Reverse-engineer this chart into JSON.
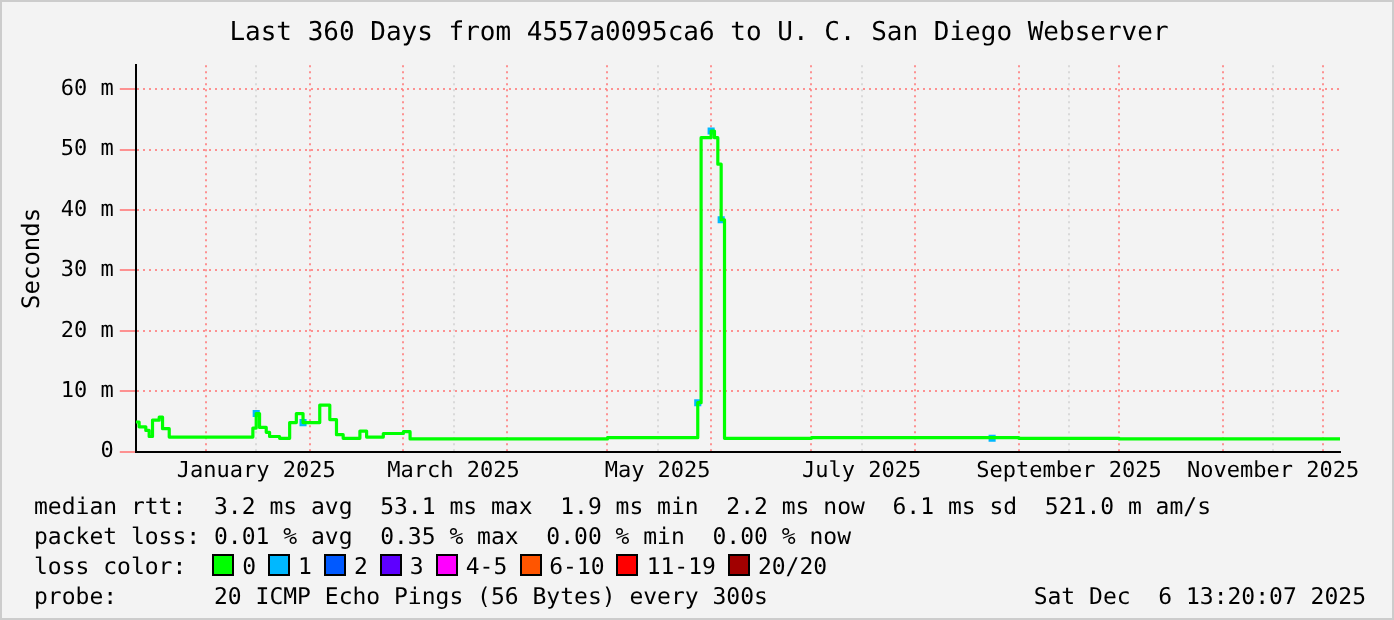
{
  "chart_data": {
    "type": "step",
    "title": "Last 360 Days from 4557a0095ca6 to U. C. San Diego Webserver",
    "ylabel": "Seconds",
    "legend_title": "loss color:",
    "xlim": [
      "2024-12-11",
      "2025-12-06"
    ],
    "xticks": [
      {
        "value": "2025-01-01",
        "label": null
      },
      {
        "value": "2025-01-16",
        "label": "January 2025"
      },
      {
        "value": "2025-02-01",
        "label": null
      },
      {
        "value": "2025-03-01",
        "label": null
      },
      {
        "value": "2025-03-16",
        "label": "March 2025"
      },
      {
        "value": "2025-04-01",
        "label": null
      },
      {
        "value": "2025-05-01",
        "label": null
      },
      {
        "value": "2025-05-16",
        "label": "May 2025"
      },
      {
        "value": "2025-06-01",
        "label": null
      },
      {
        "value": "2025-07-01",
        "label": null
      },
      {
        "value": "2025-07-16",
        "label": "July 2025"
      },
      {
        "value": "2025-08-01",
        "label": null
      },
      {
        "value": "2025-09-01",
        "label": null
      },
      {
        "value": "2025-09-16",
        "label": "September 2025"
      },
      {
        "value": "2025-10-01",
        "label": null
      },
      {
        "value": "2025-11-01",
        "label": null
      },
      {
        "value": "2025-11-16",
        "label": "November 2025"
      },
      {
        "value": "2025-12-01",
        "label": null
      }
    ],
    "ylim": [
      0,
      64
    ],
    "yticks": [
      0,
      {
        "value": 10,
        "label": "10 m"
      },
      {
        "value": 20,
        "label": "20 m"
      },
      {
        "value": 30,
        "label": "30 m"
      },
      {
        "value": 40,
        "label": "40 m"
      },
      {
        "value": 50,
        "label": "50 m"
      },
      {
        "value": 60,
        "label": "60 m"
      }
    ],
    "grid": true,
    "legend": "bottom",
    "series": [
      {
        "name": "0",
        "color": "#00ff00",
        "x": [
          "2024-12-11",
          "2024-12-12",
          "2024-12-14",
          "2024-12-15",
          "2024-12-16",
          "2024-12-18",
          "2024-12-19",
          "2024-12-21",
          "2025-01-14",
          "2025-01-15",
          "2025-01-16",
          "2025-01-17",
          "2025-01-19",
          "2025-01-20",
          "2025-01-23",
          "2025-01-26",
          "2025-01-28",
          "2025-01-30",
          "2025-02-04",
          "2025-02-07",
          "2025-02-09",
          "2025-02-11",
          "2025-02-13",
          "2025-02-16",
          "2025-02-18",
          "2025-02-23",
          "2025-03-01",
          "2025-03-03",
          "2025-04-01",
          "2025-05-01",
          "2025-05-27",
          "2025-05-28",
          "2025-05-29",
          "2025-06-01",
          "2025-06-02",
          "2025-06-03",
          "2025-06-04",
          "2025-06-05",
          "2025-07-01",
          "2025-08-01",
          "2025-09-01",
          "2025-10-01",
          "2025-11-01",
          "2025-12-06"
        ],
        "values": [
          4.9,
          4.1,
          3.5,
          2.5,
          5.2,
          5.7,
          3.8,
          2.4,
          2.4,
          3.9,
          6.3,
          4.0,
          3.2,
          2.5,
          2.2,
          4.8,
          6.3,
          4.8,
          7.7,
          5.3,
          2.8,
          2.2,
          2.2,
          3.4,
          2.4,
          3.0,
          3.3,
          2.1,
          2.1,
          2.3,
          2.3,
          8.1,
          52.0,
          53.1,
          52.0,
          47.6,
          38.4,
          2.2,
          2.3,
          2.3,
          2.2,
          2.1,
          2.1,
          2.1
        ]
      },
      {
        "name": "1",
        "color": "#00b8ff",
        "type": "scatter",
        "x": [
          "2025-01-16",
          "2025-01-30",
          "2025-05-28",
          "2025-06-01",
          "2025-06-04",
          "2025-08-24"
        ],
        "values": [
          6.3,
          4.8,
          8.1,
          53.1,
          38.4,
          2.2
        ]
      },
      {
        "name": "2",
        "color": "#0059ff",
        "type": "scatter"
      },
      {
        "name": "3",
        "color": "#5e00ff",
        "type": "scatter"
      },
      {
        "name": "4-5",
        "color": "#ff00ff",
        "type": "scatter"
      },
      {
        "name": "6-10",
        "color": "#ff5500",
        "type": "scatter"
      },
      {
        "name": "11-19",
        "color": "#ff0000",
        "type": "scatter"
      },
      {
        "name": "20/20",
        "color": "#a10000",
        "type": "scatter"
      }
    ],
    "annotations": [
      "median rtt:  3.2 ms avg  53.1 ms max  1.9 ms min  2.2 ms now  6.1 ms sd  521.0 m am/s",
      "packet loss: 0.01 % avg  0.35 % max  0.00 % min  0.00 % now",
      "probe:       20 ICMP Echo Pings (56 Bytes) every 300s",
      "Sat Dec  6 13:20:07 2025"
    ]
  }
}
